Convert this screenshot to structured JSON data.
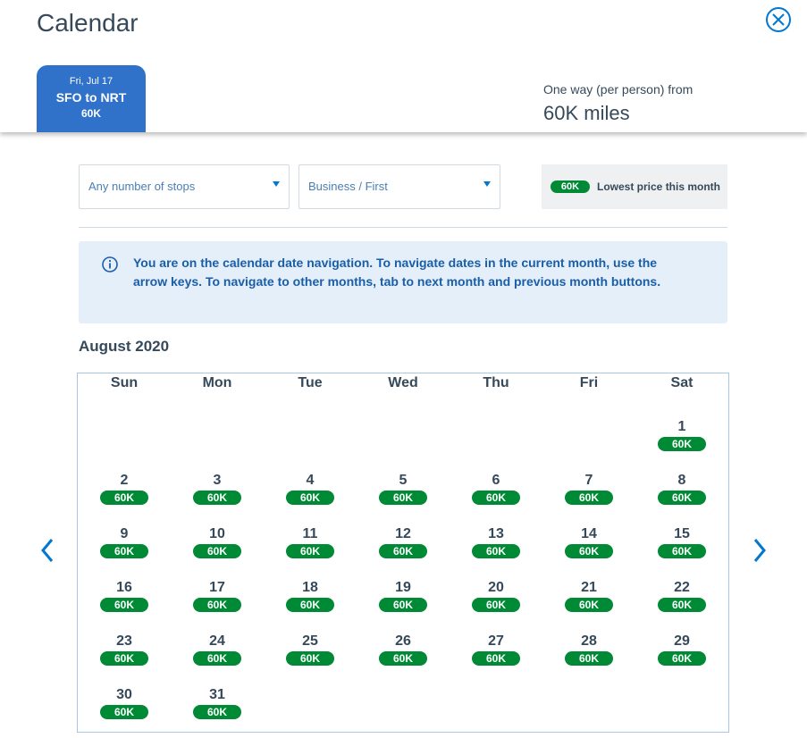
{
  "header": {
    "title": "Calendar"
  },
  "tab": {
    "date": "Fri, Jul 17",
    "route": "SFO to NRT",
    "price": "60K"
  },
  "summary": {
    "label": "One way (per person) from",
    "price": "60K miles"
  },
  "filters": {
    "stops": "Any number of stops",
    "cabin": "Business / First"
  },
  "legend": {
    "badge": "60K",
    "label": "Lowest price this month"
  },
  "notice": "You are on the calendar date navigation. To navigate dates in the current month, use the arrow keys. To navigate to other months, tab to next month and previous month buttons.",
  "calendar": {
    "month": "August 2020",
    "weekdays": [
      "Sun",
      "Mon",
      "Tue",
      "Wed",
      "Thu",
      "Fri",
      "Sat"
    ],
    "weeks": [
      [
        null,
        null,
        null,
        null,
        null,
        null,
        {
          "day": 1,
          "price": "60K"
        }
      ],
      [
        {
          "day": 2,
          "price": "60K"
        },
        {
          "day": 3,
          "price": "60K"
        },
        {
          "day": 4,
          "price": "60K"
        },
        {
          "day": 5,
          "price": "60K"
        },
        {
          "day": 6,
          "price": "60K"
        },
        {
          "day": 7,
          "price": "60K"
        },
        {
          "day": 8,
          "price": "60K"
        }
      ],
      [
        {
          "day": 9,
          "price": "60K"
        },
        {
          "day": 10,
          "price": "60K"
        },
        {
          "day": 11,
          "price": "60K"
        },
        {
          "day": 12,
          "price": "60K"
        },
        {
          "day": 13,
          "price": "60K"
        },
        {
          "day": 14,
          "price": "60K"
        },
        {
          "day": 15,
          "price": "60K"
        }
      ],
      [
        {
          "day": 16,
          "price": "60K"
        },
        {
          "day": 17,
          "price": "60K"
        },
        {
          "day": 18,
          "price": "60K"
        },
        {
          "day": 19,
          "price": "60K"
        },
        {
          "day": 20,
          "price": "60K"
        },
        {
          "day": 21,
          "price": "60K"
        },
        {
          "day": 22,
          "price": "60K"
        }
      ],
      [
        {
          "day": 23,
          "price": "60K"
        },
        {
          "day": 24,
          "price": "60K"
        },
        {
          "day": 25,
          "price": "60K"
        },
        {
          "day": 26,
          "price": "60K"
        },
        {
          "day": 27,
          "price": "60K"
        },
        {
          "day": 28,
          "price": "60K"
        },
        {
          "day": 29,
          "price": "60K"
        }
      ],
      [
        {
          "day": 30,
          "price": "60K"
        },
        {
          "day": 31,
          "price": "60K"
        },
        null,
        null,
        null,
        null,
        null
      ]
    ]
  }
}
